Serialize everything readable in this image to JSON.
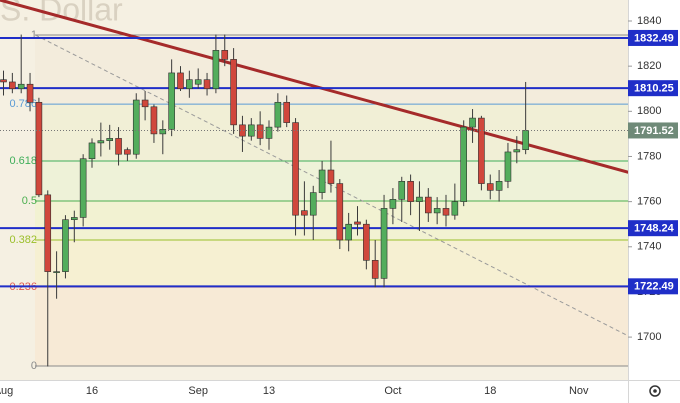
{
  "chart_data": {
    "type": "candlestick",
    "watermark": "S. Dollar",
    "categories": [
      "Aug",
      null,
      null,
      null,
      null,
      null,
      null,
      null,
      null,
      null,
      "16",
      null,
      null,
      null,
      null,
      null,
      null,
      null,
      null,
      null,
      null,
      null,
      "Sep",
      null,
      null,
      null,
      null,
      null,
      null,
      null,
      "13",
      null,
      null,
      null,
      null,
      null,
      null,
      null,
      null,
      null,
      null,
      null,
      null,
      null,
      "Oct",
      null,
      null,
      null,
      null,
      null,
      null,
      null,
      null,
      null,
      null,
      "18",
      null,
      null,
      null,
      null,
      null,
      null,
      null,
      null,
      null,
      "Nov",
      null,
      null,
      null,
      null
    ],
    "series": {
      "open": [
        1814,
        1813,
        1810,
        1812,
        1804,
        1763,
        1729,
        1729,
        1752,
        1753,
        1779,
        1786,
        1787,
        1788,
        1783,
        1781,
        1805,
        1802,
        1790,
        1792,
        1817,
        1810,
        1812,
        1814,
        1810,
        1827,
        1823,
        1794,
        1789,
        1794,
        1788,
        1793,
        1804,
        1795,
        1756,
        1754,
        1764,
        1774,
        1768,
        1743,
        1751,
        1750,
        1734,
        1726,
        1757,
        1761,
        1769,
        1760,
        1762,
        1755,
        1757,
        1754,
        1760,
        1793,
        1797,
        1768,
        1765,
        1769,
        1782,
        1783,
        null,
        null,
        null,
        null,
        null,
        null,
        null,
        null,
        null,
        null
      ],
      "high": [
        1818,
        1817,
        1834,
        1817,
        1806,
        1765,
        1738,
        1754,
        1756,
        1781,
        1788,
        1795,
        1794,
        1793,
        1784,
        1808,
        1809,
        1803,
        1796,
        1823,
        1820,
        1818,
        1819,
        1817,
        1834,
        1834,
        1828,
        1798,
        1797,
        1800,
        1796,
        1808,
        1807,
        1797,
        1769,
        1767,
        1778,
        1787,
        1770,
        1755,
        1758,
        1752,
        1743,
        1763,
        1766,
        1771,
        1772,
        1769,
        1766,
        1762,
        1763,
        1768,
        1796,
        1801,
        1798,
        1772,
        1774,
        1786,
        1789,
        1813,
        null,
        null,
        null,
        null,
        null,
        null,
        null,
        null,
        null,
        null
      ],
      "low": [
        1807,
        1808,
        1808,
        1800,
        1762,
        1687,
        1717,
        1726,
        1742,
        1749,
        1775,
        1780,
        1783,
        1776,
        1778,
        1779,
        1796,
        1786,
        1781,
        1789,
        1809,
        1806,
        1810,
        1807,
        1808,
        1820,
        1790,
        1782,
        1787,
        1785,
        1783,
        1791,
        1793,
        1745,
        1745,
        1743,
        1761,
        1764,
        1739,
        1738,
        1745,
        1730,
        1722,
        1722,
        1750,
        1751,
        1754,
        1747,
        1751,
        1750,
        1749,
        1752,
        1758,
        1786,
        1765,
        1761,
        1760,
        1766,
        1777,
        1781,
        null,
        null,
        null,
        null,
        null,
        null,
        null,
        null,
        null,
        null
      ],
      "close": [
        1813,
        1810,
        1812,
        1804,
        1763,
        1729,
        1729,
        1752,
        1753,
        1779,
        1786,
        1787,
        1788,
        1781,
        1781,
        1805,
        1802,
        1790,
        1792,
        1817,
        1810,
        1814,
        1814,
        1810,
        1827,
        1823,
        1794,
        1789,
        1794,
        1788,
        1793,
        1804,
        1795,
        1754,
        1754,
        1764,
        1774,
        1768,
        1743,
        1750,
        1750,
        1734,
        1726,
        1757,
        1761,
        1769,
        1760,
        1762,
        1755,
        1757,
        1754,
        1760,
        1793,
        1797,
        1768,
        1765,
        1769,
        1782,
        1783,
        1791.52,
        null,
        null,
        null,
        null,
        null,
        null,
        null,
        null,
        null,
        null
      ]
    },
    "up_color": "#53ad5c",
    "down_color": "#d0473c",
    "ylim": [
      1681,
      1849.3
    ],
    "yticks": [
      1700,
      1720,
      1740,
      1760,
      1780,
      1800,
      1820,
      1840
    ],
    "grid": false,
    "levels": [
      {
        "value": 1832.49,
        "color": "#1f2ec8"
      },
      {
        "value": 1810.25,
        "color": "#1f2ec8"
      },
      {
        "value": 1748.24,
        "color": "#1f2ec8"
      },
      {
        "value": 1722.49,
        "color": "#1f2ec8"
      }
    ],
    "last_price_color": "#6f8a78",
    "fib": [
      {
        "label": "1",
        "value": 1833.8,
        "color": "#8a8a8a",
        "zone": "#f3ecdc"
      },
      {
        "label": "0.786",
        "value": 1803.2,
        "color": "#5b9bd5",
        "zone": "#f1efd6"
      },
      {
        "label": "0.618",
        "value": 1778,
        "color": "#3fae5a",
        "zone": "#eef2d8"
      },
      {
        "label": "0.5",
        "value": 1760.3,
        "color": "#4caf50",
        "zone": "#f2f2d2"
      },
      {
        "label": "0.382",
        "value": 1743,
        "color": "#9bbf2a",
        "zone": "#f6f0d2"
      },
      {
        "label": "0.236",
        "value": 1722.2,
        "color": "#e05a4f",
        "zone": "#f7ead6"
      },
      {
        "label": "0",
        "value": 1687.2,
        "color": "#8a8a8a",
        "zone": "#f7ead6"
      }
    ],
    "trendlines": [
      {
        "x": [
          -0.4,
          70.6
        ],
        "y": [
          1849.3,
          1773
        ],
        "color": "#a52a2a",
        "dashed": false
      },
      {
        "x": [
          3.6,
          70.6
        ],
        "y": [
          1833.8,
          1700.5
        ],
        "color": "#9a9a9a",
        "dashed": true
      }
    ]
  }
}
